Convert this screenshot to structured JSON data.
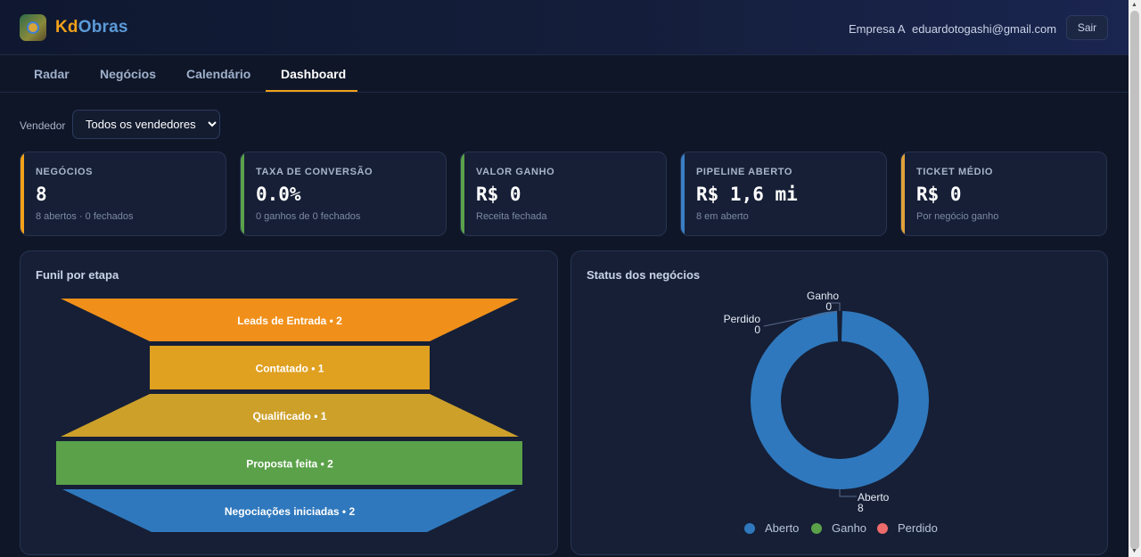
{
  "header": {
    "brand_part1": "Kd",
    "brand_part2": "Obras",
    "company": "Empresa A",
    "email": "eduardotogashi@gmail.com",
    "logout_label": "Sair"
  },
  "tabs": [
    {
      "label": "Radar",
      "active": false
    },
    {
      "label": "Negócios",
      "active": false
    },
    {
      "label": "Calendário",
      "active": false
    },
    {
      "label": "Dashboard",
      "active": true
    }
  ],
  "filter": {
    "label": "Vendedor",
    "selected": "Todos os vendedores"
  },
  "kpis": [
    {
      "label": "NEGÓCIOS",
      "value": "8",
      "sub": "8 abertos · 0 fechados",
      "color": "#f2a11a"
    },
    {
      "label": "TAXA DE CONVERSÃO",
      "value": "0.0%",
      "sub": "0 ganhos de 0 fechados",
      "color": "#5aa14a"
    },
    {
      "label": "VALOR GANHO",
      "value": "R$ 0",
      "sub": "Receita fechada",
      "color": "#5aa14a"
    },
    {
      "label": "PIPELINE ABERTO",
      "value": "R$ 1,6 mi",
      "sub": "8 em aberto",
      "color": "#3a7fc4"
    },
    {
      "label": "TICKET MÉDIO",
      "value": "R$ 0",
      "sub": "Por negócio ganho",
      "color": "#e0a23a"
    }
  ],
  "funnel": {
    "title": "Funil por etapa",
    "stages": [
      {
        "label": "Leads de Entrada",
        "count": 2,
        "color": "#f0901a"
      },
      {
        "label": "Contatado",
        "count": 1,
        "color": "#e0a020"
      },
      {
        "label": "Qualificado",
        "count": 1,
        "color": "#cda02a"
      },
      {
        "label": "Proposta feita",
        "count": 2,
        "color": "#5aa14a"
      },
      {
        "label": "Negociações iniciadas",
        "count": 2,
        "color": "#2f78bd"
      }
    ]
  },
  "chart_data": {
    "type": "pie",
    "title": "Status dos negócios",
    "categories": [
      "Aberto",
      "Ganho",
      "Perdido"
    ],
    "values": [
      8,
      0,
      0
    ],
    "colors": [
      "#2f78bd",
      "#5aa14a",
      "#ee6b6b"
    ],
    "legend": "bottom"
  }
}
